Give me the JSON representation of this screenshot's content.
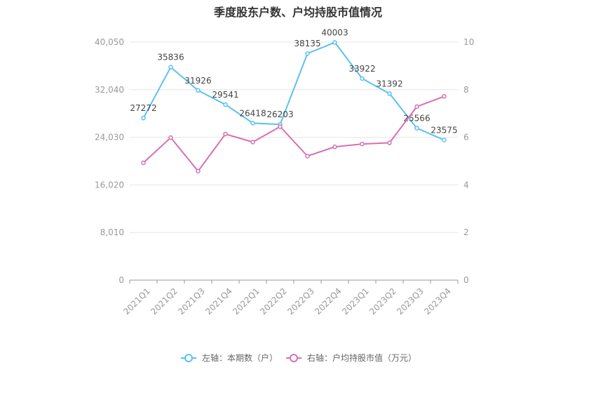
{
  "chart_data": {
    "type": "line",
    "title": "季度股东户数、户均持股市值情况",
    "categories": [
      "2021Q1",
      "2021Q2",
      "2021Q3",
      "2021Q4",
      "2022Q1",
      "2022Q2",
      "2022Q3",
      "2022Q4",
      "2023Q1",
      "2023Q2",
      "2023Q3",
      "2023Q4"
    ],
    "left_axis": {
      "ticks": [
        "0",
        "8,010",
        "16,020",
        "24,030",
        "32,040",
        "40,050"
      ],
      "min": 0,
      "max": 40050
    },
    "right_axis": {
      "ticks": [
        "0",
        "2",
        "4",
        "6",
        "8",
        "10"
      ],
      "min": 0,
      "max": 10
    },
    "series": [
      {
        "name": "左轴：本期数（户）",
        "axis": "left",
        "color": "#5bc1f0",
        "values": [
          27272,
          35836,
          31926,
          29541,
          26418,
          26203,
          38135,
          40003,
          33922,
          31392,
          25566,
          23575
        ],
        "labels": [
          "27272",
          "35836",
          "31926",
          "29541",
          "26418",
          "26203",
          "38135",
          "40003",
          "33922",
          "31392",
          "25566",
          "23575"
        ]
      },
      {
        "name": "右轴：户均持股市值（万元）",
        "axis": "right",
        "color": "#d770b4",
        "values": [
          4.93,
          5.99,
          4.58,
          6.14,
          5.8,
          6.45,
          5.21,
          5.6,
          5.72,
          5.77,
          7.29,
          7.72
        ]
      }
    ],
    "grid": true,
    "legend": "bottom"
  }
}
